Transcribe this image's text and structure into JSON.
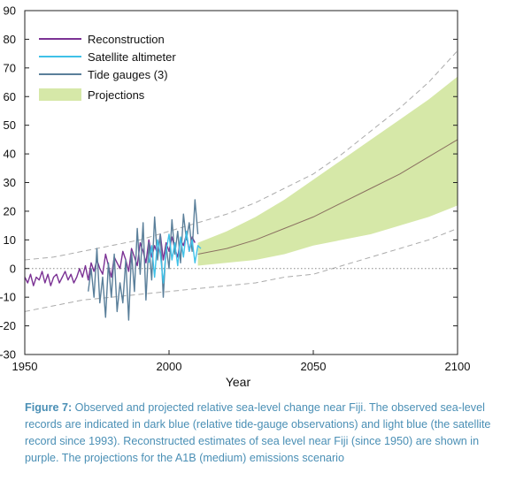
{
  "chart_data": {
    "type": "line",
    "title": "",
    "xlabel": "Year",
    "ylabel": "",
    "xlim": [
      1950,
      2100
    ],
    "ylim": [
      -30,
      90
    ],
    "xticks": [
      1950,
      2000,
      2050,
      2100
    ],
    "yticks": [
      90,
      80,
      70,
      60,
      50,
      40,
      30,
      20,
      10,
      0,
      -10,
      -20,
      -30
    ],
    "legend": {
      "placement": "top-left",
      "entries": [
        "Reconstruction",
        "Satellite altimeter",
        "Tide gauges (3)",
        "Projections"
      ]
    },
    "colors": {
      "reconstruction": "#7b3294",
      "satellite": "#3fc1e8",
      "tide": "#5a7f9a",
      "projection_band": "#d6e8a8",
      "projection_median": "#8a7060",
      "dashed": "#aaaaaa",
      "zero_line": "#888888"
    },
    "series": [
      {
        "name": "Reconstruction",
        "style": "line",
        "x": [
          1950,
          1951,
          1952,
          1953,
          1954,
          1955,
          1956,
          1957,
          1958,
          1959,
          1960,
          1961,
          1962,
          1963,
          1964,
          1965,
          1966,
          1967,
          1968,
          1969,
          1970,
          1971,
          1972,
          1973,
          1974,
          1975,
          1976,
          1977,
          1978,
          1979,
          1980,
          1981,
          1982,
          1983,
          1984,
          1985,
          1986,
          1987,
          1988,
          1989,
          1990,
          1991,
          1992,
          1993,
          1994,
          1995,
          1996,
          1997,
          1998,
          1999,
          2000,
          2001,
          2002,
          2003,
          2004,
          2005,
          2006,
          2007,
          2008,
          2009
        ],
        "y": [
          -3,
          -5,
          -2,
          -6,
          -3,
          -4,
          -1,
          -5,
          -2,
          -6,
          -3,
          -2,
          -5,
          -3,
          -1,
          -4,
          -2,
          -5,
          -3,
          0,
          -3,
          1,
          -4,
          2,
          -1,
          3,
          0,
          -2,
          5,
          1,
          -3,
          4,
          2,
          0,
          6,
          3,
          -1,
          7,
          4,
          1,
          9,
          6,
          2,
          10,
          4,
          8,
          5,
          12,
          3,
          9,
          6,
          11,
          7,
          4,
          10,
          8,
          12,
          6,
          11,
          9
        ]
      },
      {
        "name": "Satellite altimeter",
        "style": "line",
        "x": [
          1993,
          1994,
          1995,
          1996,
          1997,
          1998,
          1999,
          2000,
          2001,
          2002,
          2003,
          2004,
          2005,
          2006,
          2007,
          2008,
          2009,
          2010,
          2011
        ],
        "y": [
          2,
          8,
          -3,
          10,
          5,
          -5,
          6,
          12,
          3,
          9,
          1,
          11,
          4,
          13,
          6,
          10,
          2,
          8,
          7
        ]
      },
      {
        "name": "Tide gauges (3)",
        "style": "line",
        "x": [
          1972,
          1973,
          1974,
          1975,
          1976,
          1977,
          1978,
          1979,
          1980,
          1981,
          1982,
          1983,
          1984,
          1985,
          1986,
          1987,
          1988,
          1989,
          1990,
          1991,
          1992,
          1993,
          1994,
          1995,
          1996,
          1997,
          1998,
          1999,
          2000,
          2001,
          2002,
          2003,
          2004,
          2005,
          2006,
          2007,
          2008,
          2009,
          2010
        ],
        "y": [
          -8,
          0,
          -10,
          7,
          -12,
          -3,
          -17,
          2,
          -10,
          5,
          -15,
          -5,
          -12,
          3,
          -18,
          6,
          -8,
          14,
          -2,
          16,
          -11,
          9,
          -4,
          18,
          3,
          12,
          -10,
          8,
          0,
          17,
          5,
          13,
          2,
          19,
          10,
          16,
          6,
          24,
          12
        ]
      },
      {
        "name": "Projections",
        "style": "band",
        "x": [
          2010,
          2020,
          2030,
          2040,
          2050,
          2060,
          2070,
          2080,
          2090,
          2100
        ],
        "lower": [
          1,
          2,
          3,
          5,
          8,
          10,
          12,
          15,
          18,
          22
        ],
        "median": [
          5,
          7,
          10,
          14,
          18,
          23,
          28,
          33,
          39,
          45
        ],
        "upper": [
          9,
          13,
          18,
          24,
          31,
          38,
          45,
          52,
          59,
          67
        ]
      },
      {
        "name": "",
        "style": "dashed-upper",
        "x": [
          1950,
          1960,
          1970,
          1980,
          1990,
          2000,
          2010,
          2020,
          2030,
          2040,
          2050,
          2060,
          2070,
          2080,
          2090,
          2100
        ],
        "y": [
          3,
          4,
          6,
          8,
          10,
          13,
          16,
          19,
          23,
          28,
          33,
          40,
          48,
          56,
          65,
          76
        ]
      },
      {
        "name": "",
        "style": "dashed-lower",
        "x": [
          1950,
          1960,
          1970,
          1980,
          1990,
          2000,
          2010,
          2020,
          2030,
          2040,
          2050,
          2060,
          2070,
          2080,
          2090,
          2100
        ],
        "y": [
          -15,
          -13,
          -11,
          -10,
          -9,
          -8,
          -7,
          -6,
          -5,
          -3,
          -2,
          1,
          4,
          7,
          10,
          14
        ]
      }
    ]
  },
  "caption": {
    "label": "Figure 7:",
    "text": " Observed and projected relative sea-level change near Fiji. The observed sea-level records are indicated in dark blue (relative tide-gauge observations) and light blue (the satellite record since 1993). Reconstructed estimates of sea level near Fiji (since 1950) are shown in purple. The projections for the A1B (medium) emissions scenario"
  }
}
